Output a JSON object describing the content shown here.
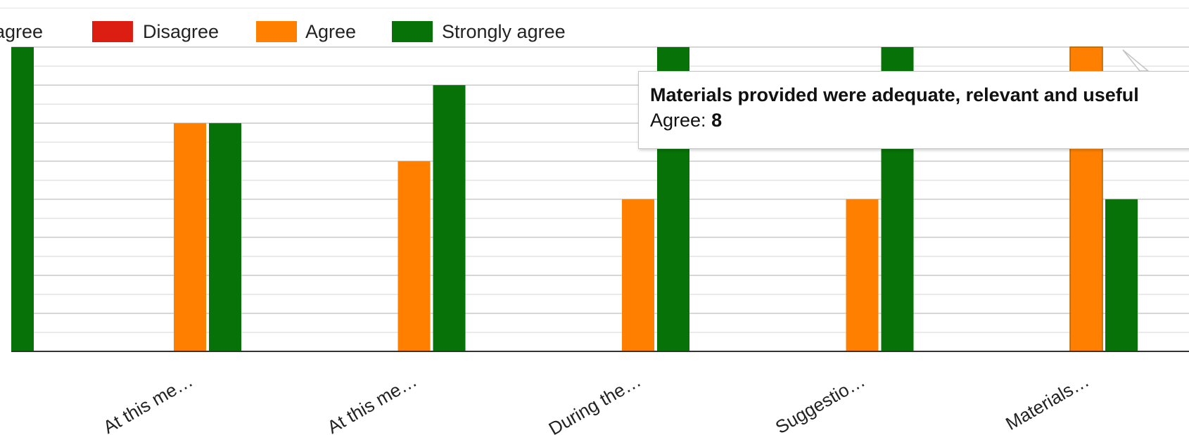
{
  "chart_data": {
    "type": "bar",
    "categories": [
      "At this me…",
      "At this me…",
      "During the…",
      "Suggestio…",
      "Materials…"
    ],
    "series": [
      {
        "name": "agree",
        "color": "#3366cc",
        "values": [
          0,
          0,
          0,
          0,
          0
        ]
      },
      {
        "name": "Disagree",
        "color": "#dc1e12",
        "values": [
          0,
          0,
          0,
          0,
          0
        ]
      },
      {
        "name": "Agree",
        "color": "#ff8000",
        "values": [
          6,
          5,
          4,
          4,
          8
        ]
      },
      {
        "name": "Strongly agree",
        "color": "#077207",
        "values": [
          6,
          7,
          8,
          8,
          4
        ]
      }
    ],
    "partial_category": {
      "strongly_agree_value": 8
    },
    "ylim": [
      0,
      8
    ],
    "grid": true,
    "legend_position": "top-left"
  },
  "tooltip": {
    "title": "Materials provided were adequate, relevant and useful",
    "series_label": "Agree: ",
    "value": "8"
  }
}
